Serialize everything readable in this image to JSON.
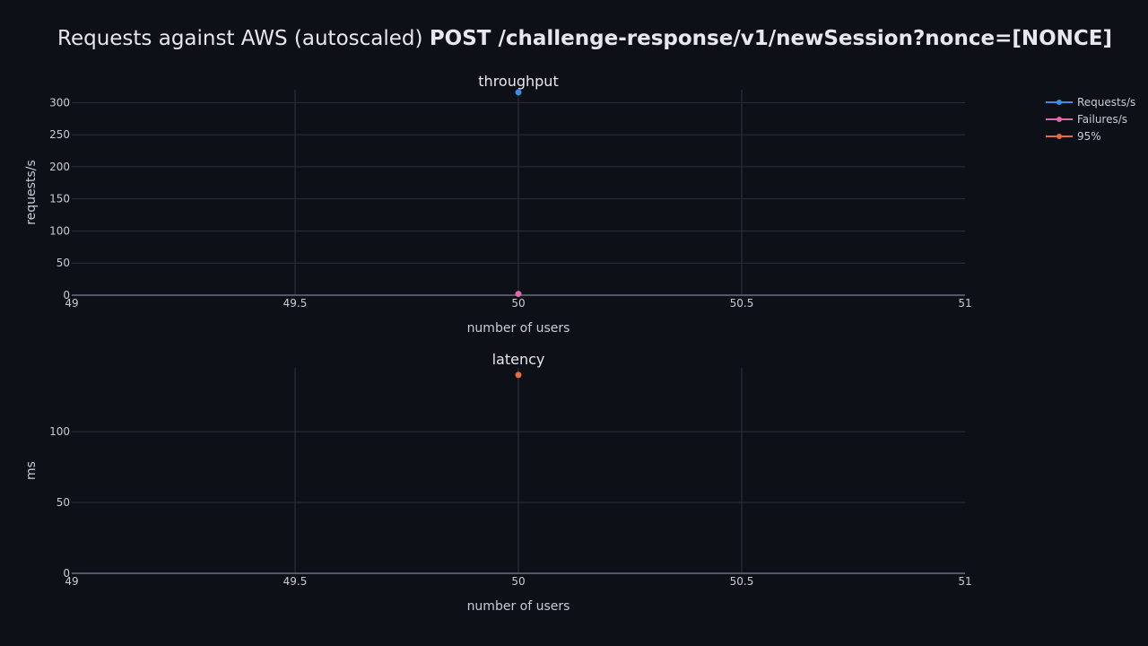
{
  "title": {
    "prefix": "Requests against AWS (autoscaled) ",
    "endpoint": "POST /challenge-response/v1/newSession?nonce=[NONCE]"
  },
  "colors": {
    "background": "#0d1017",
    "requests": "#3b8de6",
    "failures": "#e06aa8",
    "p95": "#e86a3f"
  },
  "legend": [
    {
      "name": "Requests/s",
      "color": "#3b8de6"
    },
    {
      "name": "Failures/s",
      "color": "#e06aa8"
    },
    {
      "name": "95%",
      "color": "#e86a3f"
    }
  ],
  "chart_data": [
    {
      "type": "scatter",
      "title": "throughput",
      "xlabel": "number of users",
      "ylabel": "requests/s",
      "xlim": [
        49,
        51
      ],
      "ylim": [
        0,
        320
      ],
      "xticks": [
        49,
        49.5,
        50,
        50.5,
        51
      ],
      "xtick_labels": [
        "49",
        "49.5",
        "50",
        "50.5",
        "51"
      ],
      "yticks": [
        0,
        50,
        100,
        150,
        200,
        250,
        300
      ],
      "ytick_labels": [
        "0",
        "50",
        "100",
        "150",
        "200",
        "250",
        "300"
      ],
      "grid": true,
      "series": [
        {
          "name": "Requests/s",
          "color": "#3b8de6",
          "x": [
            50
          ],
          "y": [
            316
          ]
        },
        {
          "name": "Failures/s",
          "color": "#e06aa8",
          "x": [
            50
          ],
          "y": [
            2
          ]
        }
      ]
    },
    {
      "type": "scatter",
      "title": "latency",
      "xlabel": "number of users",
      "ylabel": "ms",
      "xlim": [
        49,
        51
      ],
      "ylim": [
        0,
        145
      ],
      "xticks": [
        49,
        49.5,
        50,
        50.5,
        51
      ],
      "xtick_labels": [
        "49",
        "49.5",
        "50",
        "50.5",
        "51"
      ],
      "yticks": [
        0,
        50,
        100
      ],
      "ytick_labels": [
        "0",
        "50",
        "100"
      ],
      "grid": true,
      "series": [
        {
          "name": "95%",
          "color": "#e86a3f",
          "x": [
            50
          ],
          "y": [
            140
          ]
        }
      ]
    }
  ]
}
